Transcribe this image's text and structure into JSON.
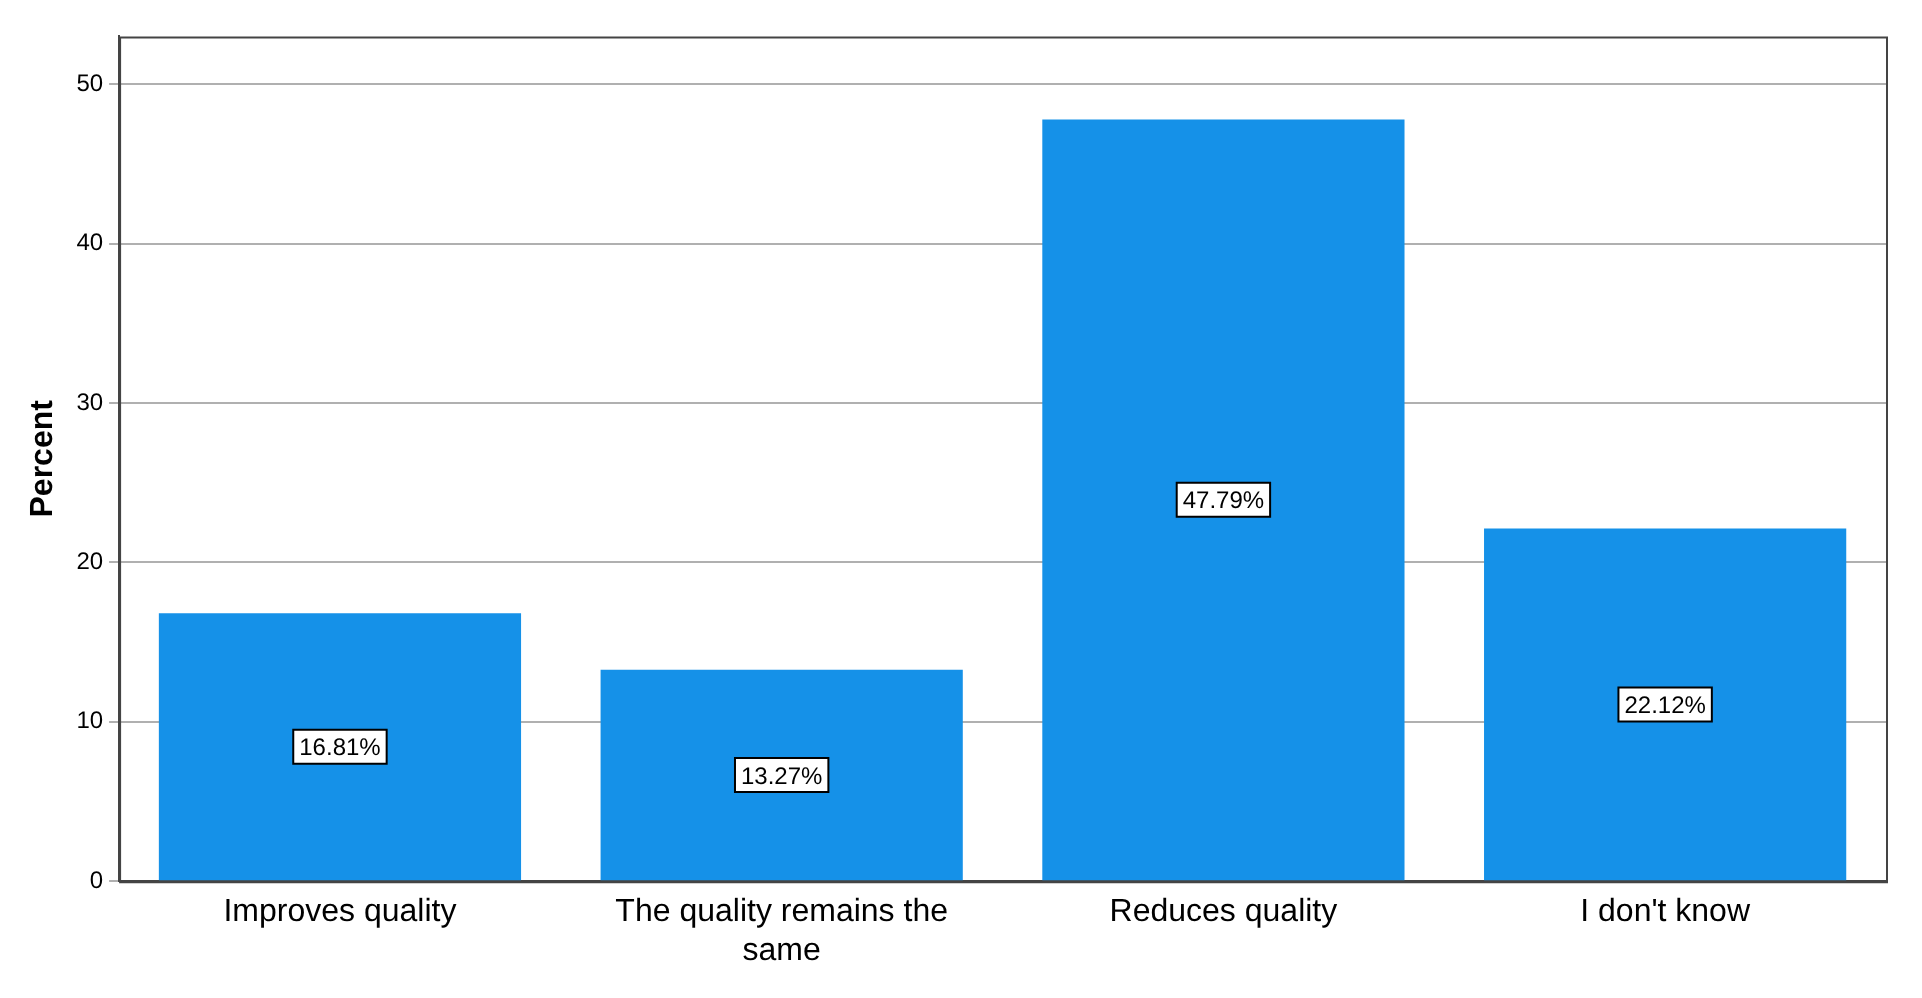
{
  "chart_data": {
    "type": "bar",
    "ylabel": "Percent",
    "categories": [
      "Improves quality",
      "The quality remains the same",
      "Reduces quality",
      "I don't know"
    ],
    "values": [
      16.81,
      13.27,
      47.79,
      22.12
    ],
    "color": "#1591e8",
    "value_labels": [
      "16.81%",
      "13.27%",
      "47.79%",
      "22.12%"
    ],
    "ylim": [
      0,
      53
    ],
    "yticks": [
      0,
      10,
      20,
      30,
      40,
      50
    ],
    "grid": "y",
    "legend": false
  }
}
